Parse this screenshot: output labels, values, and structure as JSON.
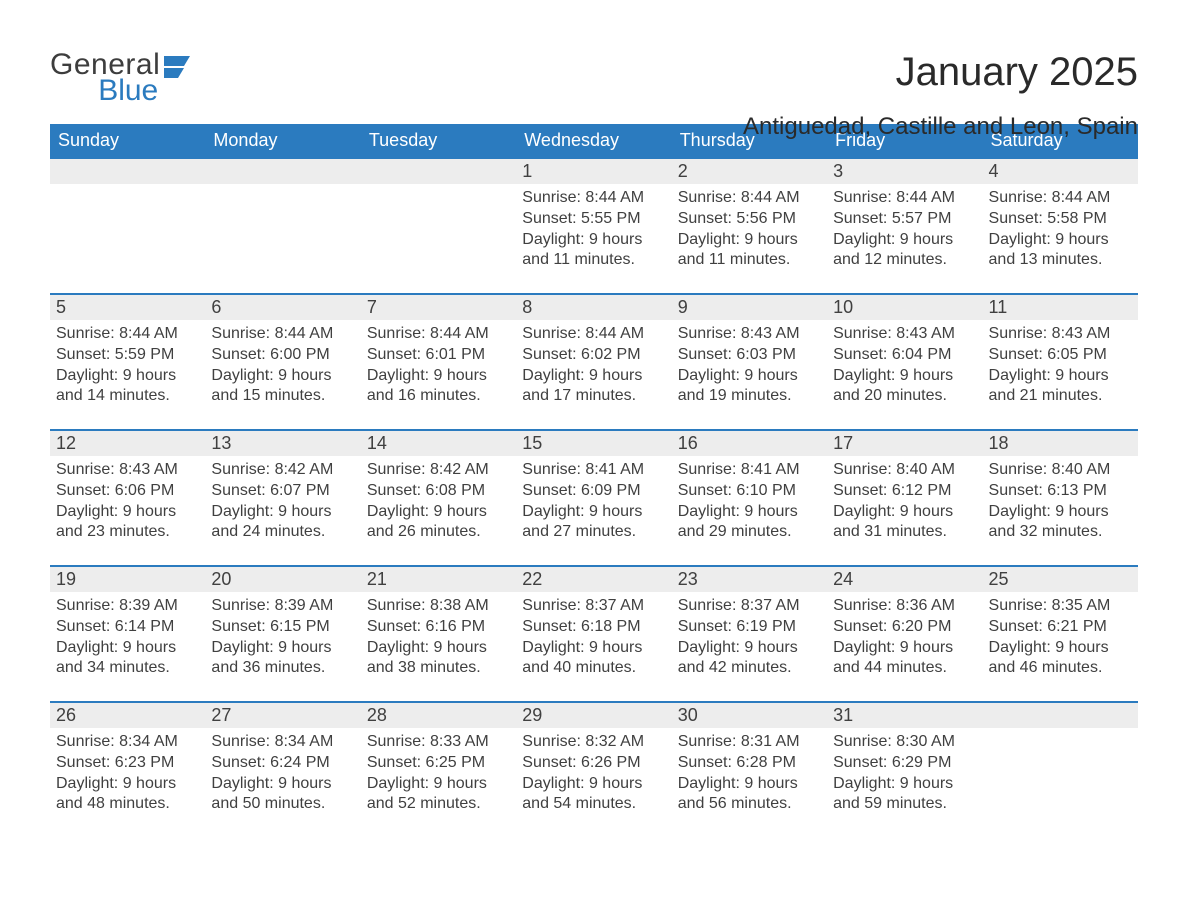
{
  "logo": {
    "line1": "General",
    "line2": "Blue",
    "flag_color": "#2b7bbf",
    "text_color_dark": "#3d3d3d"
  },
  "title": "January 2025",
  "location": "Antiguedad, Castille and Leon, Spain",
  "colors": {
    "header_bg": "#2b7bbf",
    "header_text": "#ffffff",
    "daynum_bg": "#ededed",
    "border_top": "#2b7bbf",
    "body_text": "#404040",
    "page_bg": "#ffffff"
  },
  "typography": {
    "title_fontsize": 40,
    "location_fontsize": 24,
    "header_fontsize": 18,
    "daynum_fontsize": 18,
    "body_fontsize": 16
  },
  "weekdays": [
    "Sunday",
    "Monday",
    "Tuesday",
    "Wednesday",
    "Thursday",
    "Friday",
    "Saturday"
  ],
  "weeks": [
    [
      null,
      null,
      null,
      {
        "num": "1",
        "sunrise": "Sunrise: 8:44 AM",
        "sunset": "Sunset: 5:55 PM",
        "day1": "Daylight: 9 hours",
        "day2": "and 11 minutes."
      },
      {
        "num": "2",
        "sunrise": "Sunrise: 8:44 AM",
        "sunset": "Sunset: 5:56 PM",
        "day1": "Daylight: 9 hours",
        "day2": "and 11 minutes."
      },
      {
        "num": "3",
        "sunrise": "Sunrise: 8:44 AM",
        "sunset": "Sunset: 5:57 PM",
        "day1": "Daylight: 9 hours",
        "day2": "and 12 minutes."
      },
      {
        "num": "4",
        "sunrise": "Sunrise: 8:44 AM",
        "sunset": "Sunset: 5:58 PM",
        "day1": "Daylight: 9 hours",
        "day2": "and 13 minutes."
      }
    ],
    [
      {
        "num": "5",
        "sunrise": "Sunrise: 8:44 AM",
        "sunset": "Sunset: 5:59 PM",
        "day1": "Daylight: 9 hours",
        "day2": "and 14 minutes."
      },
      {
        "num": "6",
        "sunrise": "Sunrise: 8:44 AM",
        "sunset": "Sunset: 6:00 PM",
        "day1": "Daylight: 9 hours",
        "day2": "and 15 minutes."
      },
      {
        "num": "7",
        "sunrise": "Sunrise: 8:44 AM",
        "sunset": "Sunset: 6:01 PM",
        "day1": "Daylight: 9 hours",
        "day2": "and 16 minutes."
      },
      {
        "num": "8",
        "sunrise": "Sunrise: 8:44 AM",
        "sunset": "Sunset: 6:02 PM",
        "day1": "Daylight: 9 hours",
        "day2": "and 17 minutes."
      },
      {
        "num": "9",
        "sunrise": "Sunrise: 8:43 AM",
        "sunset": "Sunset: 6:03 PM",
        "day1": "Daylight: 9 hours",
        "day2": "and 19 minutes."
      },
      {
        "num": "10",
        "sunrise": "Sunrise: 8:43 AM",
        "sunset": "Sunset: 6:04 PM",
        "day1": "Daylight: 9 hours",
        "day2": "and 20 minutes."
      },
      {
        "num": "11",
        "sunrise": "Sunrise: 8:43 AM",
        "sunset": "Sunset: 6:05 PM",
        "day1": "Daylight: 9 hours",
        "day2": "and 21 minutes."
      }
    ],
    [
      {
        "num": "12",
        "sunrise": "Sunrise: 8:43 AM",
        "sunset": "Sunset: 6:06 PM",
        "day1": "Daylight: 9 hours",
        "day2": "and 23 minutes."
      },
      {
        "num": "13",
        "sunrise": "Sunrise: 8:42 AM",
        "sunset": "Sunset: 6:07 PM",
        "day1": "Daylight: 9 hours",
        "day2": "and 24 minutes."
      },
      {
        "num": "14",
        "sunrise": "Sunrise: 8:42 AM",
        "sunset": "Sunset: 6:08 PM",
        "day1": "Daylight: 9 hours",
        "day2": "and 26 minutes."
      },
      {
        "num": "15",
        "sunrise": "Sunrise: 8:41 AM",
        "sunset": "Sunset: 6:09 PM",
        "day1": "Daylight: 9 hours",
        "day2": "and 27 minutes."
      },
      {
        "num": "16",
        "sunrise": "Sunrise: 8:41 AM",
        "sunset": "Sunset: 6:10 PM",
        "day1": "Daylight: 9 hours",
        "day2": "and 29 minutes."
      },
      {
        "num": "17",
        "sunrise": "Sunrise: 8:40 AM",
        "sunset": "Sunset: 6:12 PM",
        "day1": "Daylight: 9 hours",
        "day2": "and 31 minutes."
      },
      {
        "num": "18",
        "sunrise": "Sunrise: 8:40 AM",
        "sunset": "Sunset: 6:13 PM",
        "day1": "Daylight: 9 hours",
        "day2": "and 32 minutes."
      }
    ],
    [
      {
        "num": "19",
        "sunrise": "Sunrise: 8:39 AM",
        "sunset": "Sunset: 6:14 PM",
        "day1": "Daylight: 9 hours",
        "day2": "and 34 minutes."
      },
      {
        "num": "20",
        "sunrise": "Sunrise: 8:39 AM",
        "sunset": "Sunset: 6:15 PM",
        "day1": "Daylight: 9 hours",
        "day2": "and 36 minutes."
      },
      {
        "num": "21",
        "sunrise": "Sunrise: 8:38 AM",
        "sunset": "Sunset: 6:16 PM",
        "day1": "Daylight: 9 hours",
        "day2": "and 38 minutes."
      },
      {
        "num": "22",
        "sunrise": "Sunrise: 8:37 AM",
        "sunset": "Sunset: 6:18 PM",
        "day1": "Daylight: 9 hours",
        "day2": "and 40 minutes."
      },
      {
        "num": "23",
        "sunrise": "Sunrise: 8:37 AM",
        "sunset": "Sunset: 6:19 PM",
        "day1": "Daylight: 9 hours",
        "day2": "and 42 minutes."
      },
      {
        "num": "24",
        "sunrise": "Sunrise: 8:36 AM",
        "sunset": "Sunset: 6:20 PM",
        "day1": "Daylight: 9 hours",
        "day2": "and 44 minutes."
      },
      {
        "num": "25",
        "sunrise": "Sunrise: 8:35 AM",
        "sunset": "Sunset: 6:21 PM",
        "day1": "Daylight: 9 hours",
        "day2": "and 46 minutes."
      }
    ],
    [
      {
        "num": "26",
        "sunrise": "Sunrise: 8:34 AM",
        "sunset": "Sunset: 6:23 PM",
        "day1": "Daylight: 9 hours",
        "day2": "and 48 minutes."
      },
      {
        "num": "27",
        "sunrise": "Sunrise: 8:34 AM",
        "sunset": "Sunset: 6:24 PM",
        "day1": "Daylight: 9 hours",
        "day2": "and 50 minutes."
      },
      {
        "num": "28",
        "sunrise": "Sunrise: 8:33 AM",
        "sunset": "Sunset: 6:25 PM",
        "day1": "Daylight: 9 hours",
        "day2": "and 52 minutes."
      },
      {
        "num": "29",
        "sunrise": "Sunrise: 8:32 AM",
        "sunset": "Sunset: 6:26 PM",
        "day1": "Daylight: 9 hours",
        "day2": "and 54 minutes."
      },
      {
        "num": "30",
        "sunrise": "Sunrise: 8:31 AM",
        "sunset": "Sunset: 6:28 PM",
        "day1": "Daylight: 9 hours",
        "day2": "and 56 minutes."
      },
      {
        "num": "31",
        "sunrise": "Sunrise: 8:30 AM",
        "sunset": "Sunset: 6:29 PM",
        "day1": "Daylight: 9 hours",
        "day2": "and 59 minutes."
      },
      null
    ]
  ]
}
